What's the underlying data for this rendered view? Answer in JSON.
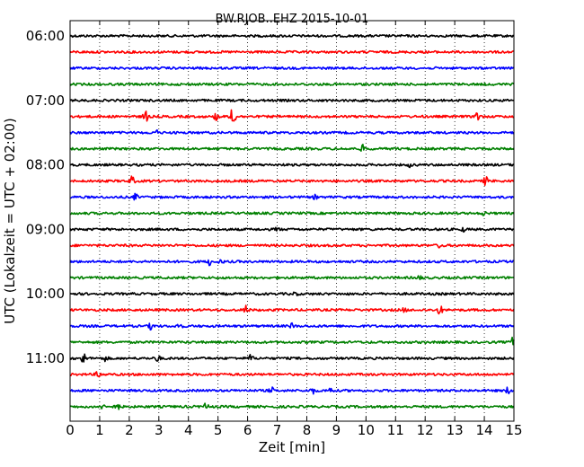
{
  "chart_data": {
    "type": "line",
    "title": "BW.RJOB..EHZ 2015-10-01",
    "xlabel": "Zeit  [min]",
    "ylabel": "UTC (Lokalzeit = UTC + 02:00)",
    "xlim": [
      0,
      15
    ],
    "xticks": [
      "0",
      "1",
      "2",
      "3",
      "4",
      "5",
      "6",
      "7",
      "8",
      "9",
      "10",
      "11",
      "12",
      "13",
      "14",
      "15"
    ],
    "ytick_labels": [
      "06:00",
      "07:00",
      "08:00",
      "09:00",
      "10:00",
      "11:00"
    ],
    "grid": "vertical dotted",
    "color_cycle": [
      "#000000",
      "#ff0000",
      "#0000ff",
      "#008000"
    ],
    "traces": [
      {
        "start": "06:00",
        "events": []
      },
      {
        "start": "06:15",
        "events": []
      },
      {
        "start": "06:30",
        "events": []
      },
      {
        "start": "06:45",
        "events": []
      },
      {
        "start": "07:00",
        "events": []
      },
      {
        "start": "07:15",
        "events": [
          {
            "t": 2.55,
            "amp": 0.9
          },
          {
            "t": 4.95,
            "amp": 0.6
          },
          {
            "t": 5.5,
            "amp": 2.2
          },
          {
            "t": 13.75,
            "amp": 0.75
          }
        ]
      },
      {
        "start": "07:30",
        "events": [
          {
            "t": 2.9,
            "amp": 0.35
          }
        ]
      },
      {
        "start": "07:45",
        "events": [
          {
            "t": 9.9,
            "amp": 0.45
          }
        ]
      },
      {
        "start": "08:00",
        "events": [
          {
            "t": 11.5,
            "amp": 0.25
          }
        ]
      },
      {
        "start": "08:15",
        "events": [
          {
            "t": 2.1,
            "amp": 0.6
          },
          {
            "t": 14.05,
            "amp": 0.6
          }
        ]
      },
      {
        "start": "08:30",
        "events": [
          {
            "t": 2.2,
            "amp": 0.4
          },
          {
            "t": 8.3,
            "amp": 0.3
          }
        ]
      },
      {
        "start": "08:45",
        "events": [
          {
            "t": 14.0,
            "amp": 0.25
          }
        ]
      },
      {
        "start": "09:00",
        "events": [
          {
            "t": 7.0,
            "amp": 0.25
          },
          {
            "t": 13.3,
            "amp": 0.25
          }
        ]
      },
      {
        "start": "09:15",
        "events": [
          {
            "t": 12.5,
            "amp": 0.3
          }
        ]
      },
      {
        "start": "09:30",
        "events": [
          {
            "t": 4.7,
            "amp": 0.45
          },
          {
            "t": 5.1,
            "amp": 0.25
          }
        ]
      },
      {
        "start": "09:45",
        "events": [
          {
            "t": 11.8,
            "amp": 0.25
          }
        ]
      },
      {
        "start": "10:00",
        "events": [
          {
            "t": 7.6,
            "amp": 0.25
          }
        ]
      },
      {
        "start": "10:15",
        "events": [
          {
            "t": 5.95,
            "amp": 0.65
          },
          {
            "t": 12.5,
            "amp": 0.65
          },
          {
            "t": 11.3,
            "amp": 0.25
          }
        ]
      },
      {
        "start": "10:30",
        "events": [
          {
            "t": 2.75,
            "amp": 0.55
          },
          {
            "t": 3.7,
            "amp": 0.6
          },
          {
            "t": 7.5,
            "amp": 0.35
          }
        ]
      },
      {
        "start": "10:45",
        "events": [
          {
            "t": 14.95,
            "amp": 0.55
          }
        ]
      },
      {
        "start": "11:00",
        "events": [
          {
            "t": 0.45,
            "amp": 0.85
          },
          {
            "t": 2.95,
            "amp": 0.55
          },
          {
            "t": 6.1,
            "amp": 0.45
          },
          {
            "t": 1.2,
            "amp": 0.35
          }
        ]
      },
      {
        "start": "11:15",
        "events": [
          {
            "t": 0.95,
            "amp": 0.45
          }
        ]
      },
      {
        "start": "11:30",
        "events": [
          {
            "t": 6.8,
            "amp": 0.45
          },
          {
            "t": 8.2,
            "amp": 0.45
          },
          {
            "t": 8.8,
            "amp": 0.45
          },
          {
            "t": 14.8,
            "amp": 0.45
          }
        ]
      },
      {
        "start": "11:45",
        "events": [
          {
            "t": 1.15,
            "amp": 0.6
          },
          {
            "t": 1.6,
            "amp": 0.5
          },
          {
            "t": 4.6,
            "amp": 0.45
          }
        ]
      }
    ]
  }
}
